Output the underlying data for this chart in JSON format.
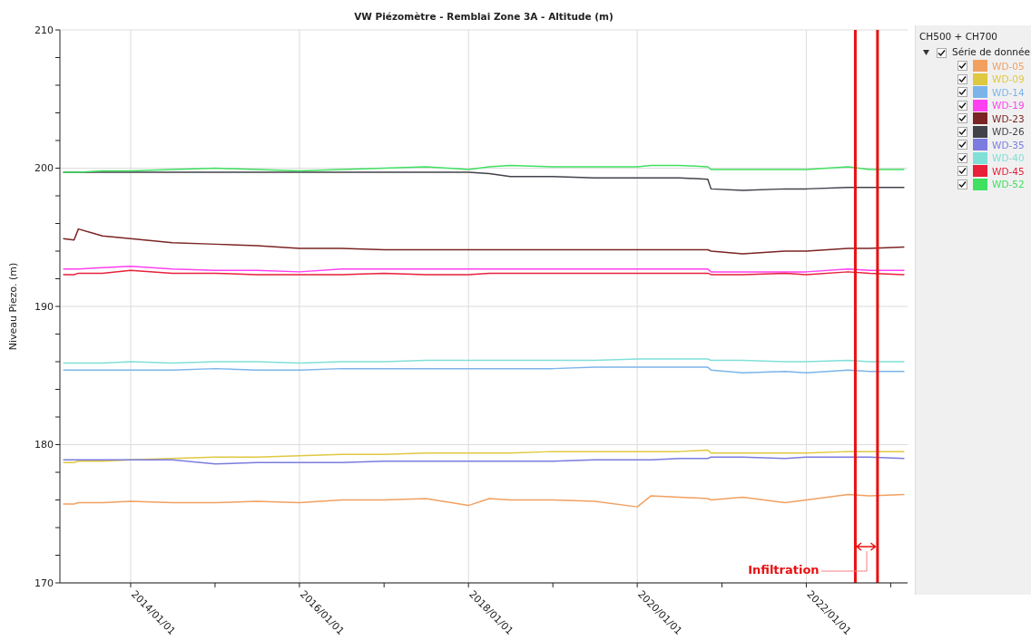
{
  "chart_data": {
    "type": "line",
    "title": "VW Piézomètre - Remblai Zone 3A - Altitude (m)",
    "ylabel": "Niveau Piezo. (m)",
    "legend_title": "CH500 + CH700",
    "legend": "right",
    "grid": true,
    "marker": "none",
    "line_style": "solid",
    "annotations": [
      "Série de donnée",
      "Infiltration"
    ],
    "x": [
      "2013-03-15",
      "2013-05-01",
      "2013-05-20",
      "2013-09-01",
      "2014-01-01",
      "2014-07-01",
      "2015-01-01",
      "2015-07-01",
      "2016-01-01",
      "2016-07-01",
      "2017-01-01",
      "2017-07-01",
      "2018-01-01",
      "2018-04-01",
      "2018-07-01",
      "2019-01-01",
      "2019-07-01",
      "2020-01-01",
      "2020-03-01",
      "2020-07-01",
      "2020-11-01",
      "2020-11-15",
      "2021-04-01",
      "2021-10-01",
      "2022-01-01",
      "2022-07-01",
      "2022-10-01",
      "2023-03-01"
    ],
    "xlim": [
      "2013-03-01",
      "2023-03-15"
    ],
    "xticks": [
      {
        "value": "2014-01-01",
        "label": "2014/01/01"
      },
      {
        "value": "2015-01-01",
        "label": null
      },
      {
        "value": "2016-01-01",
        "label": "2016/01/01"
      },
      {
        "value": "2017-01-01",
        "label": null
      },
      {
        "value": "2018-01-01",
        "label": "2018/01/01"
      },
      {
        "value": "2019-01-01",
        "label": null
      },
      {
        "value": "2020-01-01",
        "label": "2020/01/01"
      },
      {
        "value": "2021-01-01",
        "label": null
      },
      {
        "value": "2022-01-01",
        "label": "2022/01/01"
      },
      {
        "value": "2023-01-01",
        "label": null
      }
    ],
    "ylim": [
      170,
      210
    ],
    "yticks": [
      170,
      {
        "value": 172,
        "label": null
      },
      {
        "value": 174,
        "label": null
      },
      {
        "value": 176,
        "label": null
      },
      {
        "value": 178,
        "label": null
      },
      180,
      {
        "value": 182,
        "label": null
      },
      {
        "value": 184,
        "label": null
      },
      {
        "value": 186,
        "label": null
      },
      {
        "value": 188,
        "label": null
      },
      190,
      {
        "value": 192,
        "label": null
      },
      {
        "value": 194,
        "label": null
      },
      {
        "value": 196,
        "label": null
      },
      {
        "value": 198,
        "label": null
      },
      200,
      {
        "value": 202,
        "label": null
      },
      {
        "value": 204,
        "label": null
      },
      {
        "value": 206,
        "label": null
      },
      {
        "value": 208,
        "label": null
      },
      210
    ],
    "ref_lines": [
      {
        "axis": "x",
        "value": "2022-08-01",
        "color": "#e81010"
      },
      {
        "axis": "x",
        "value": "2022-11-05",
        "color": "#e81010"
      }
    ],
    "series": [
      {
        "name": "WD-05",
        "color": "#f2a060",
        "values": [
          175.7,
          175.7,
          175.8,
          175.8,
          175.9,
          175.8,
          175.8,
          175.9,
          175.8,
          176.0,
          176.0,
          176.1,
          175.6,
          176.1,
          176.0,
          176.0,
          175.9,
          175.5,
          176.3,
          176.2,
          176.1,
          176.0,
          176.2,
          175.8,
          176.0,
          176.4,
          176.3,
          176.4
        ]
      },
      {
        "name": "WD-09",
        "color": "#e0c840",
        "values": [
          178.7,
          178.7,
          178.8,
          178.8,
          178.9,
          179.0,
          179.1,
          179.1,
          179.2,
          179.3,
          179.3,
          179.4,
          179.4,
          179.4,
          179.4,
          179.5,
          179.5,
          179.5,
          179.5,
          179.5,
          179.6,
          179.4,
          179.4,
          179.4,
          179.4,
          179.5,
          179.5,
          179.5
        ]
      },
      {
        "name": "WD-14",
        "color": "#7cb4ea",
        "values": [
          185.4,
          185.4,
          185.4,
          185.4,
          185.4,
          185.4,
          185.5,
          185.4,
          185.4,
          185.5,
          185.5,
          185.5,
          185.5,
          185.5,
          185.5,
          185.5,
          185.6,
          185.6,
          185.6,
          185.6,
          185.6,
          185.4,
          185.2,
          185.3,
          185.2,
          185.4,
          185.3,
          185.3
        ]
      },
      {
        "name": "WD-19",
        "color": "#ff40f0",
        "values": [
          192.7,
          192.7,
          192.7,
          192.8,
          192.9,
          192.7,
          192.6,
          192.6,
          192.5,
          192.7,
          192.7,
          192.7,
          192.7,
          192.7,
          192.7,
          192.7,
          192.7,
          192.7,
          192.7,
          192.7,
          192.7,
          192.5,
          192.5,
          192.5,
          192.5,
          192.7,
          192.6,
          192.6
        ]
      },
      {
        "name": "WD-23",
        "color": "#7b2424",
        "values": [
          194.9,
          194.8,
          195.6,
          195.1,
          194.9,
          194.6,
          194.5,
          194.4,
          194.2,
          194.2,
          194.1,
          194.1,
          194.1,
          194.1,
          194.1,
          194.1,
          194.1,
          194.1,
          194.1,
          194.1,
          194.1,
          194.0,
          193.8,
          194.0,
          194.0,
          194.2,
          194.2,
          194.3
        ]
      },
      {
        "name": "WD-26",
        "color": "#42424a",
        "values": [
          199.7,
          199.7,
          199.7,
          199.7,
          199.7,
          199.7,
          199.7,
          199.7,
          199.7,
          199.7,
          199.7,
          199.7,
          199.7,
          199.6,
          199.4,
          199.4,
          199.3,
          199.3,
          199.3,
          199.3,
          199.2,
          198.5,
          198.4,
          198.5,
          198.5,
          198.6,
          198.6,
          198.6
        ]
      },
      {
        "name": "WD-35",
        "color": "#7b7be0",
        "values": [
          178.9,
          178.9,
          178.9,
          178.9,
          178.9,
          178.9,
          178.6,
          178.7,
          178.7,
          178.7,
          178.8,
          178.8,
          178.8,
          178.8,
          178.8,
          178.8,
          178.9,
          178.9,
          178.9,
          179.0,
          179.0,
          179.1,
          179.1,
          179.0,
          179.1,
          179.1,
          179.1,
          179.0
        ]
      },
      {
        "name": "WD-40",
        "color": "#80e0d8",
        "values": [
          185.9,
          185.9,
          185.9,
          185.9,
          186.0,
          185.9,
          186.0,
          186.0,
          185.9,
          186.0,
          186.0,
          186.1,
          186.1,
          186.1,
          186.1,
          186.1,
          186.1,
          186.2,
          186.2,
          186.2,
          186.2,
          186.1,
          186.1,
          186.0,
          186.0,
          186.1,
          186.0,
          186.0
        ]
      },
      {
        "name": "WD-45",
        "color": "#e8203a",
        "values": [
          192.3,
          192.3,
          192.4,
          192.4,
          192.6,
          192.4,
          192.4,
          192.3,
          192.3,
          192.3,
          192.4,
          192.3,
          192.3,
          192.4,
          192.4,
          192.4,
          192.4,
          192.4,
          192.4,
          192.4,
          192.4,
          192.3,
          192.3,
          192.4,
          192.3,
          192.5,
          192.4,
          192.3
        ]
      },
      {
        "name": "WD-52",
        "color": "#40e060",
        "values": [
          199.7,
          199.7,
          199.7,
          199.8,
          199.8,
          199.9,
          200.0,
          199.9,
          199.8,
          199.9,
          200.0,
          200.1,
          199.9,
          200.1,
          200.2,
          200.1,
          200.1,
          200.1,
          200.2,
          200.2,
          200.1,
          199.9,
          199.9,
          199.9,
          199.9,
          200.1,
          199.9,
          199.9
        ]
      }
    ]
  }
}
